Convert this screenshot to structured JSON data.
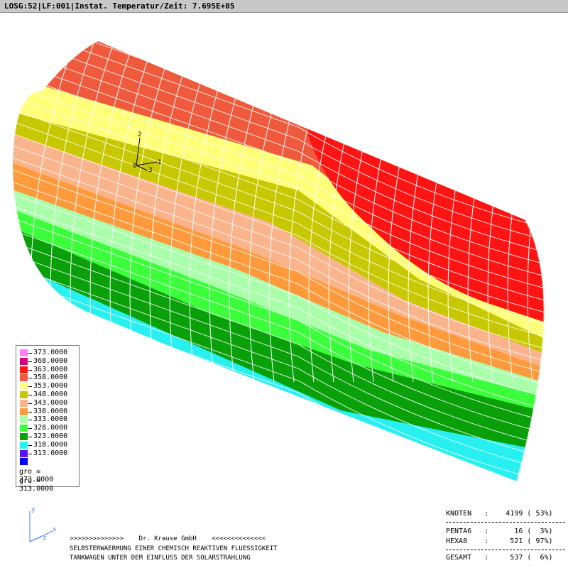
{
  "header": {
    "title": "LOSG:52|LF:001|Instat. Temperatur/Zeit: 7.695E+05"
  },
  "legend": {
    "entries": [
      {
        "label": "373.0000",
        "color": "#ff80ff"
      },
      {
        "label": "368.0000",
        "color": "#d4007a"
      },
      {
        "label": "363.0000",
        "color": "#ff1414"
      },
      {
        "label": "358.0000",
        "color": "#f05a3c"
      },
      {
        "label": "353.0000",
        "color": "#ffff78"
      },
      {
        "label": "348.0000",
        "color": "#c8c800"
      },
      {
        "label": "343.0000",
        "color": "#fab48c"
      },
      {
        "label": "338.0000",
        "color": "#ff9a3c"
      },
      {
        "label": "333.0000",
        "color": "#aaffaa"
      },
      {
        "label": "328.0000",
        "color": "#3cff3c"
      },
      {
        "label": "323.0000",
        "color": "#0aa00a"
      },
      {
        "label": "318.0000",
        "color": "#28f0f0"
      },
      {
        "label": "313.0000",
        "color": "#5a14ff"
      },
      {
        "label": "",
        "color": "#0000ff"
      }
    ],
    "gro": "gro = 373.0000",
    "gru": "gru = 313.0000"
  },
  "model": {
    "node_labels": {
      "n1": "1",
      "n2": "2",
      "n3": "3",
      "n0": "0"
    },
    "colors": {
      "mesh": "#ffffff"
    }
  },
  "triad": {
    "x": "x",
    "y": "y",
    "z": "z"
  },
  "footer": {
    "line1": ">>>>>>>>>>>>>>    Dr. Krause GmbH    <<<<<<<<<<<<<<",
    "line2": "SELBSTERWAERMUNG EINER CHEMISCH REAKTIVEN FLUESSIGKEIT",
    "line3": "TANKWAGEN UNTER DEM EINFLUSS DER SOLARSTRAHLUNG"
  },
  "stats": {
    "knoten": "KNOTEN   :    4199 ( 53%)",
    "penta": "PENTA6   :      16 (  3%)",
    "hexa": "HEXA8    :     521 ( 97%)",
    "gesamt": "GESAMT   :     537 (  6%)"
  }
}
